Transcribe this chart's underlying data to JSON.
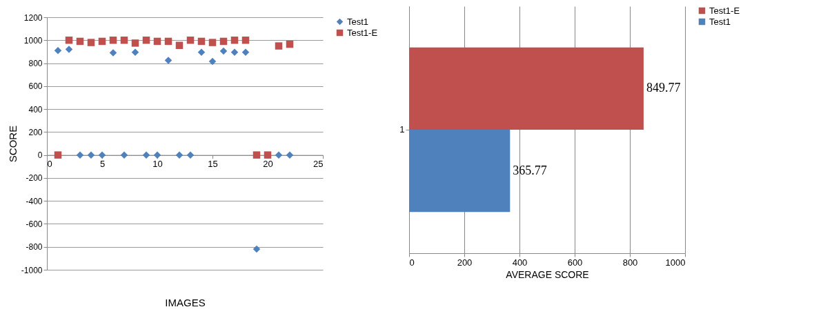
{
  "chart_data": [
    {
      "type": "scatter",
      "xlabel": "IMAGES",
      "ylabel": "SCORE",
      "x": [
        1,
        2,
        3,
        4,
        5,
        6,
        7,
        8,
        9,
        10,
        11,
        12,
        13,
        14,
        15,
        16,
        17,
        18,
        19,
        20,
        21,
        22
      ],
      "xlim": [
        0,
        25
      ],
      "xticks": [
        0,
        5,
        10,
        15,
        20,
        25
      ],
      "ylim": [
        -1000,
        1200
      ],
      "yticks": [
        -1000,
        -800,
        -600,
        -400,
        -200,
        0,
        200,
        400,
        600,
        800,
        1000,
        1200
      ],
      "grid": "y",
      "legend": "right",
      "series": [
        {
          "name": "Test1",
          "color": "#4f81bd",
          "marker": "diamond",
          "values": [
            910,
            920,
            0,
            0,
            0,
            890,
            0,
            895,
            0,
            0,
            825,
            0,
            0,
            895,
            815,
            905,
            895,
            895,
            -820,
            null,
            0,
            0
          ]
        },
        {
          "name": "Test1-E",
          "color": "#c0504d",
          "marker": "square",
          "values": [
            0,
            1000,
            990,
            980,
            990,
            1000,
            1000,
            975,
            1000,
            990,
            990,
            955,
            1000,
            990,
            980,
            990,
            1000,
            1000,
            0,
            0,
            950,
            965
          ]
        }
      ]
    },
    {
      "type": "bar",
      "orientation": "horizontal",
      "xlabel": "AVERAGE SCORE",
      "categories": [
        "1"
      ],
      "xlim": [
        0,
        1000
      ],
      "xticks": [
        0,
        200,
        400,
        600,
        800,
        1000
      ],
      "grid": "x",
      "legend": "right",
      "data_labels": true,
      "series": [
        {
          "name": "Test1",
          "color": "#4f81bd",
          "values": [
            365.77
          ]
        },
        {
          "name": "Test1-E",
          "color": "#c0504d",
          "values": [
            849.77
          ]
        }
      ]
    }
  ]
}
